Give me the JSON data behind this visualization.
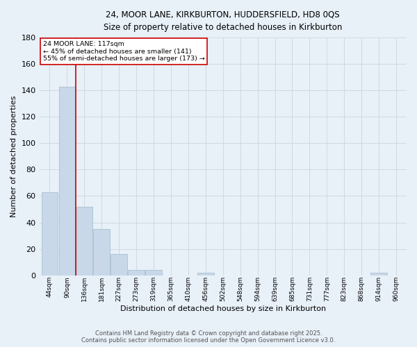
{
  "title_line1": "24, MOOR LANE, KIRKBURTON, HUDDERSFIELD, HD8 0QS",
  "title_line2": "Size of property relative to detached houses in Kirkburton",
  "xlabel": "Distribution of detached houses by size in Kirkburton",
  "ylabel": "Number of detached properties",
  "categories": [
    "44sqm",
    "90sqm",
    "136sqm",
    "181sqm",
    "227sqm",
    "273sqm",
    "319sqm",
    "365sqm",
    "410sqm",
    "456sqm",
    "502sqm",
    "548sqm",
    "594sqm",
    "639sqm",
    "685sqm",
    "731sqm",
    "777sqm",
    "823sqm",
    "868sqm",
    "914sqm",
    "960sqm"
  ],
  "values": [
    63,
    143,
    52,
    35,
    16,
    4,
    4,
    0,
    0,
    2,
    0,
    0,
    0,
    0,
    0,
    0,
    0,
    0,
    0,
    2,
    0
  ],
  "bar_color": "#c8d8e8",
  "bar_edge_color": "#a0b8cc",
  "grid_color": "#d0d8e0",
  "background_color": "#e8f0f8",
  "vline_x_index": 1,
  "vline_color": "#cc0000",
  "annotation_text": "24 MOOR LANE: 117sqm\n← 45% of detached houses are smaller (141)\n55% of semi-detached houses are larger (173) →",
  "annotation_box_color": "#ffffff",
  "annotation_box_edge": "#cc0000",
  "ylim": [
    0,
    180
  ],
  "yticks": [
    0,
    20,
    40,
    60,
    80,
    100,
    120,
    140,
    160,
    180
  ],
  "footer_line1": "Contains HM Land Registry data © Crown copyright and database right 2025.",
  "footer_line2": "Contains public sector information licensed under the Open Government Licence v3.0."
}
